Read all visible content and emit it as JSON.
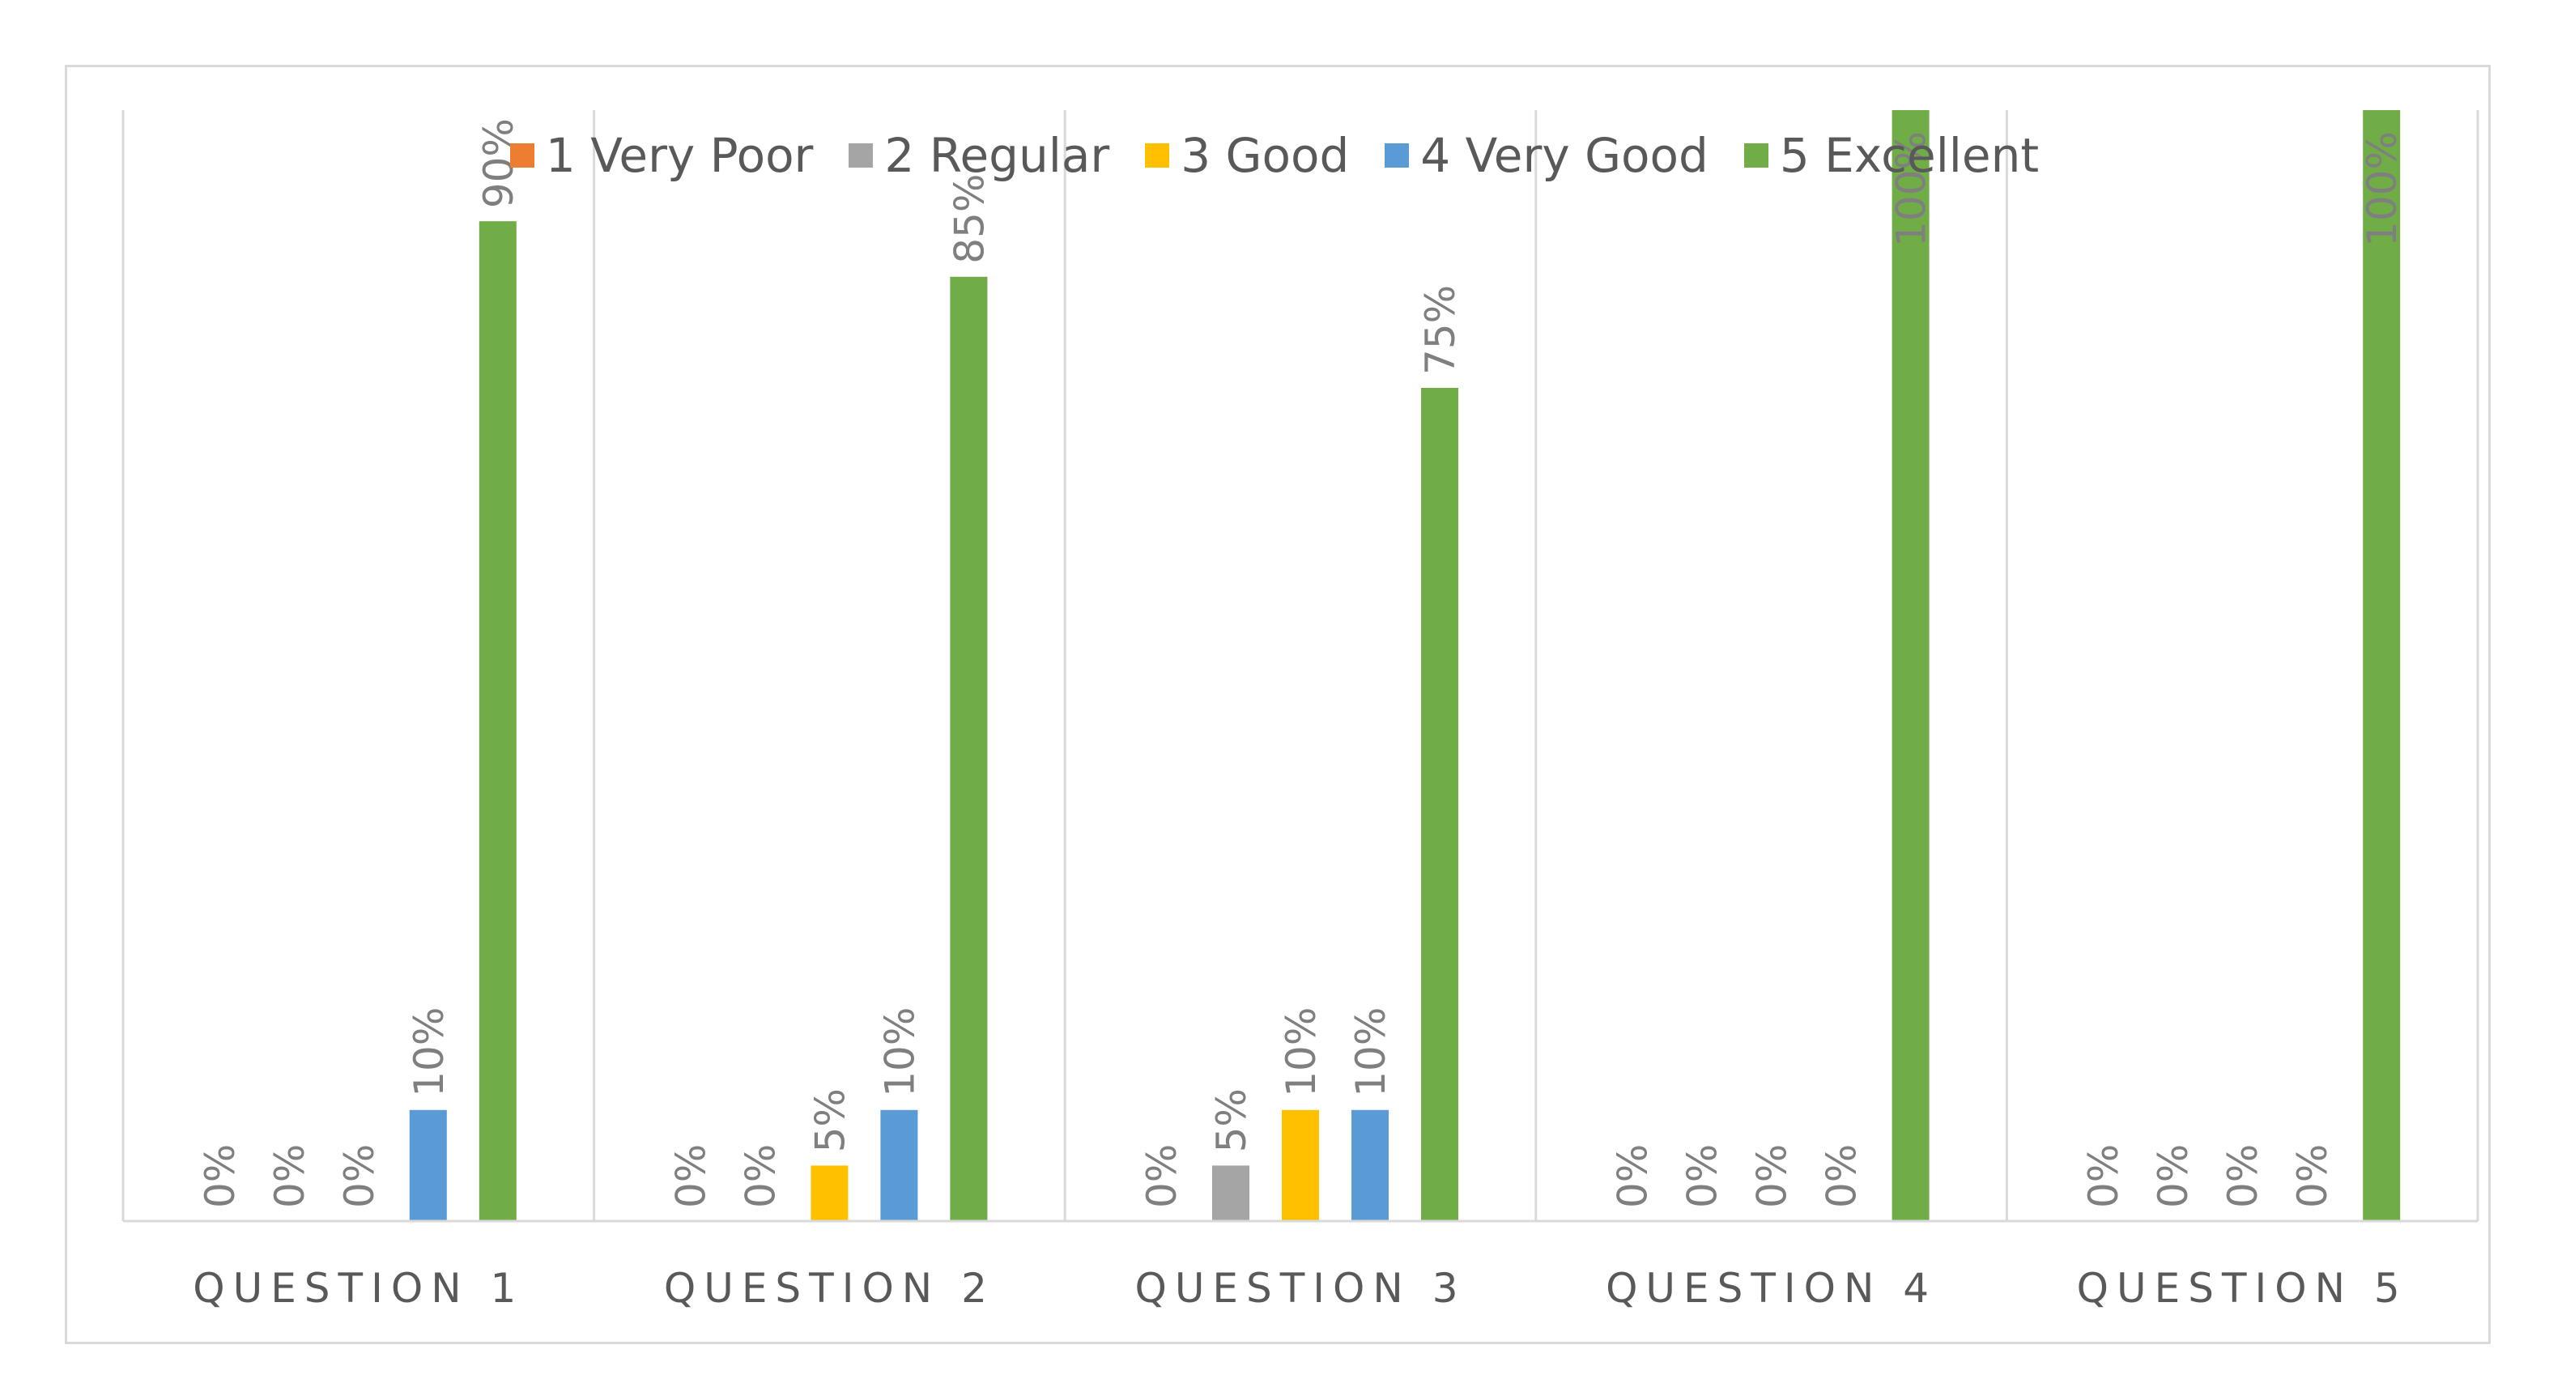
{
  "chart_data": {
    "type": "bar",
    "categories": [
      "QUESTION 1",
      "QUESTION 2",
      "QUESTION 3",
      "QUESTION 4",
      "QUESTION 5"
    ],
    "series": [
      {
        "name": "1 Very Poor",
        "color": "#ed7d31",
        "values": [
          0,
          0,
          0,
          0,
          0
        ],
        "labels": [
          "0%",
          "0%",
          "0%",
          "0%",
          "0%"
        ]
      },
      {
        "name": "2 Regular",
        "color": "#a5a5a5",
        "values": [
          0,
          0,
          5,
          0,
          0
        ],
        "labels": [
          "0%",
          "0%",
          "5%",
          "0%",
          "0%"
        ]
      },
      {
        "name": "3 Good",
        "color": "#ffc000",
        "values": [
          0,
          5,
          10,
          0,
          0
        ],
        "labels": [
          "0%",
          "5%",
          "10%",
          "0%",
          "0%"
        ]
      },
      {
        "name": "4 Very Good",
        "color": "#5b9bd5",
        "values": [
          10,
          10,
          10,
          0,
          0
        ],
        "labels": [
          "10%",
          "10%",
          "10%",
          "0%",
          "0%"
        ]
      },
      {
        "name": "5 Excellent",
        "color": "#70ad47",
        "values": [
          90,
          85,
          75,
          100,
          100
        ],
        "labels": [
          "90%",
          "85%",
          "75%",
          "100%",
          "100%"
        ]
      }
    ],
    "ylim": [
      0,
      100
    ],
    "grid": "vertical category separators",
    "legend_position": "top",
    "data_labels": "rotated vertical above bars"
  }
}
